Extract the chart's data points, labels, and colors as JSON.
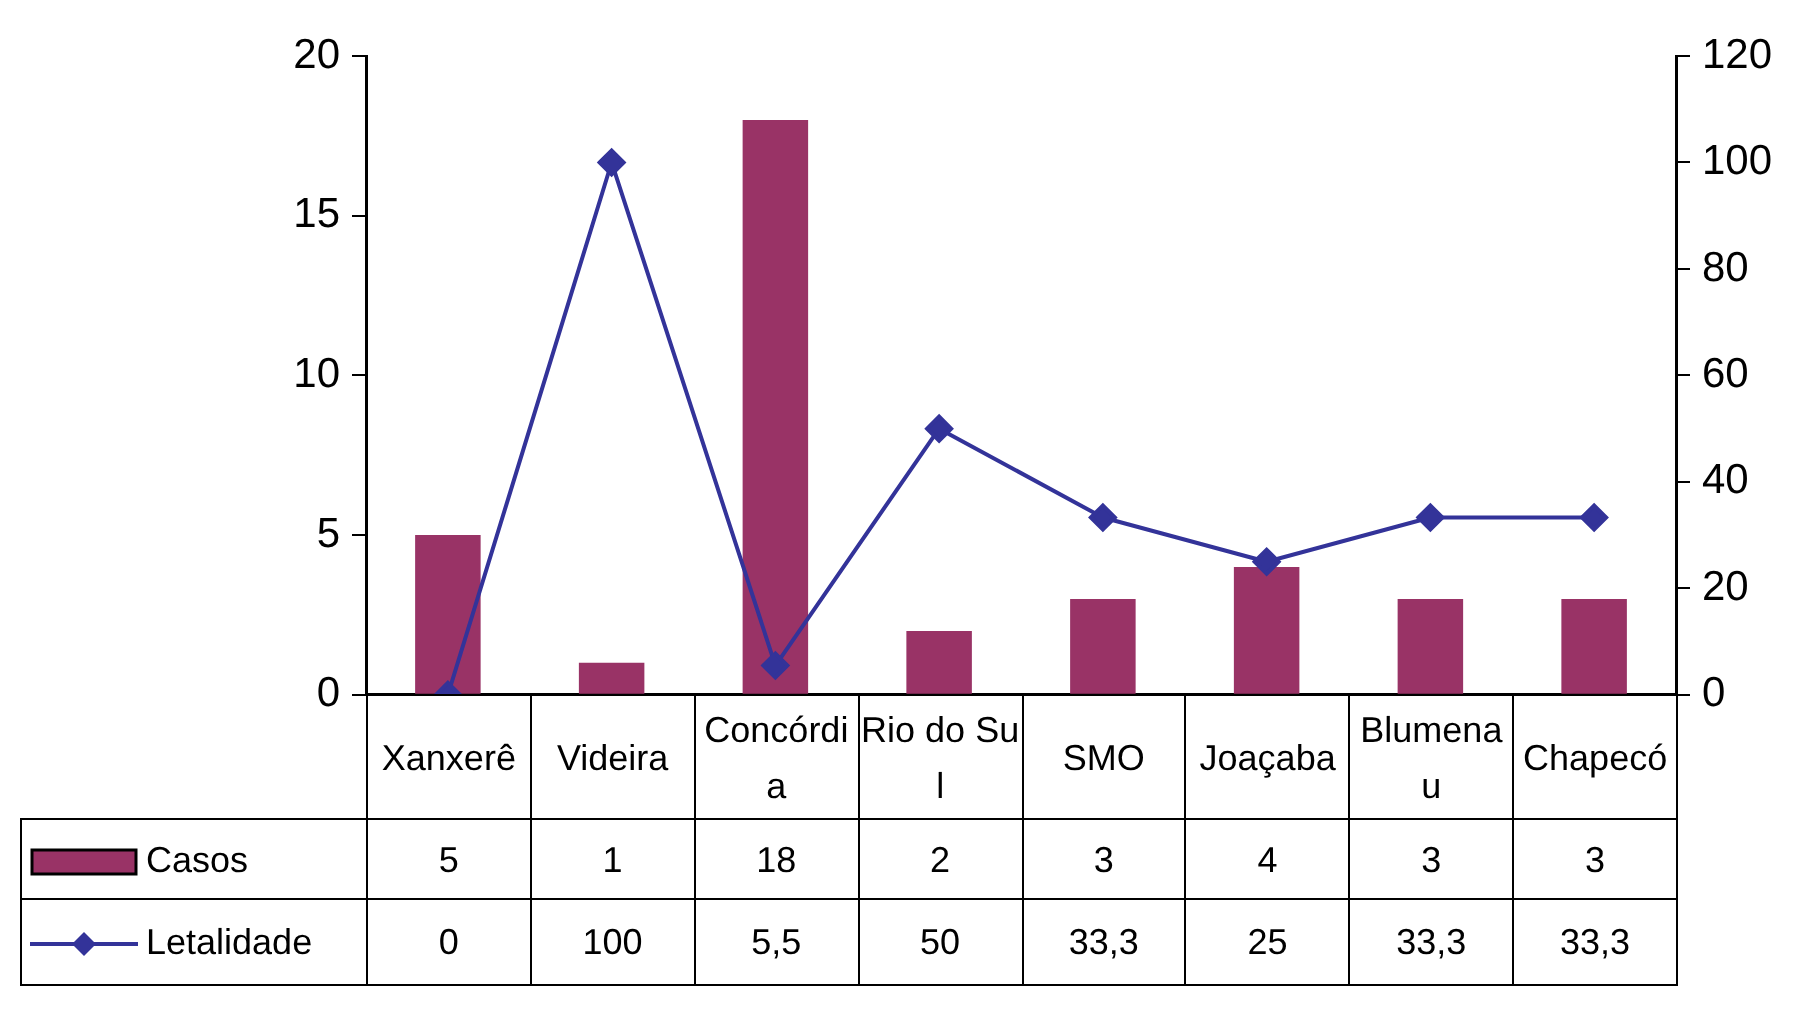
{
  "chart_data": {
    "type": "bar",
    "categories": [
      "Xanxerê",
      "Videira",
      "Concórdia",
      "Rio do Sul",
      "SMO",
      "Joaçaba",
      "Blumenau",
      "Chapecó"
    ],
    "series": [
      {
        "name": "Casos",
        "color": "#993366",
        "values": [
          5,
          1,
          18,
          2,
          3,
          4,
          3,
          3
        ],
        "value_labels": [
          "5",
          "1",
          "18",
          "2",
          "3",
          "4",
          "3",
          "3"
        ]
      },
      {
        "name": "Letalidade",
        "type": "line",
        "axis": "y2",
        "color": "#333399",
        "marker": "diamond",
        "values": [
          0,
          100,
          5.5,
          50,
          33.3,
          25,
          33.3,
          33.3
        ],
        "value_labels": [
          "0",
          "100",
          "5,5",
          "50",
          "33,3",
          "25",
          "33,3",
          "33,3"
        ]
      }
    ],
    "ylim": [
      0,
      20
    ],
    "yticks": [
      0,
      5,
      10,
      15,
      20
    ],
    "y2lim": [
      0,
      120
    ],
    "y2ticks": [
      0,
      20,
      40,
      60,
      80,
      100,
      120
    ],
    "grid": false,
    "legend": "bottom left"
  }
}
